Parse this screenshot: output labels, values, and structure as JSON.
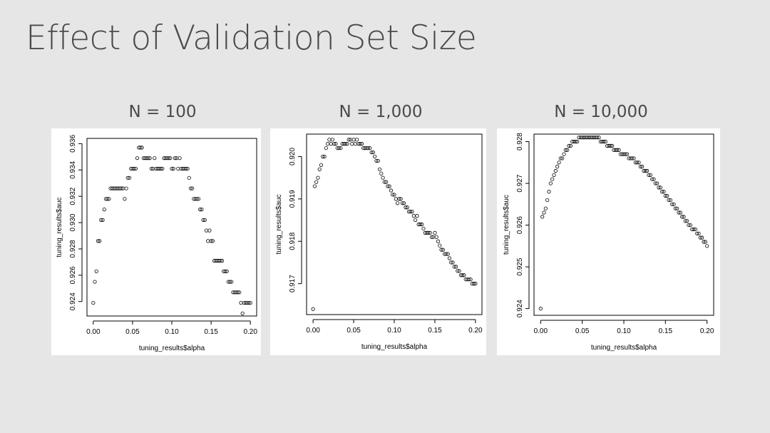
{
  "slide": {
    "title": "Effect of Validation Set Size"
  },
  "chart_data": [
    {
      "type": "scatter",
      "title": "N = 100",
      "xlabel": "tuning_results$alpha",
      "ylabel": "tuning_results$auc",
      "xlim": [
        -0.008,
        0.208
      ],
      "ylim": [
        0.9229,
        0.9364
      ],
      "xticks": [
        0,
        0.05,
        0.1,
        0.15,
        0.2
      ],
      "xtick_labels": [
        "0.00",
        "0.05",
        "0.10",
        "0.15",
        "0.20"
      ],
      "yticks": [
        0.924,
        0.926,
        0.928,
        0.93,
        0.932,
        0.934,
        0.936
      ],
      "ytick_labels": [
        "0.924",
        "0.926",
        "0.928",
        "0.930",
        "0.932",
        "0.934",
        "0.936"
      ],
      "x": [
        0.0,
        0.002,
        0.004,
        0.006,
        0.008,
        0.01,
        0.012,
        0.014,
        0.016,
        0.018,
        0.02,
        0.022,
        0.024,
        0.026,
        0.028,
        0.03,
        0.032,
        0.034,
        0.036,
        0.038,
        0.04,
        0.042,
        0.044,
        0.046,
        0.048,
        0.05,
        0.052,
        0.054,
        0.056,
        0.058,
        0.06,
        0.062,
        0.064,
        0.066,
        0.068,
        0.07,
        0.072,
        0.074,
        0.076,
        0.078,
        0.08,
        0.082,
        0.084,
        0.086,
        0.088,
        0.09,
        0.092,
        0.094,
        0.096,
        0.098,
        0.1,
        0.102,
        0.104,
        0.106,
        0.108,
        0.11,
        0.112,
        0.114,
        0.116,
        0.118,
        0.12,
        0.122,
        0.124,
        0.126,
        0.128,
        0.13,
        0.132,
        0.134,
        0.136,
        0.138,
        0.14,
        0.142,
        0.144,
        0.146,
        0.148,
        0.15,
        0.152,
        0.154,
        0.156,
        0.158,
        0.16,
        0.162,
        0.164,
        0.166,
        0.168,
        0.17,
        0.172,
        0.174,
        0.176,
        0.178,
        0.18,
        0.182,
        0.184,
        0.186,
        0.188,
        0.19,
        0.192,
        0.194,
        0.196,
        0.198,
        0.2
      ],
      "values": [
        0.9239,
        0.9255,
        0.9263,
        0.9286,
        0.9286,
        0.9302,
        0.9302,
        0.931,
        0.9318,
        0.9318,
        0.9318,
        0.9326,
        0.9326,
        0.9326,
        0.9326,
        0.9326,
        0.9326,
        0.9326,
        0.9326,
        0.9326,
        0.9318,
        0.9326,
        0.9334,
        0.9334,
        0.9341,
        0.9341,
        0.9341,
        0.9341,
        0.9349,
        0.9357,
        0.9357,
        0.9357,
        0.9349,
        0.9349,
        0.9349,
        0.9349,
        0.9349,
        0.9341,
        0.9341,
        0.9349,
        0.9341,
        0.9341,
        0.9341,
        0.9341,
        0.9341,
        0.9349,
        0.9349,
        0.9349,
        0.9349,
        0.9349,
        0.9341,
        0.9341,
        0.9349,
        0.9349,
        0.9341,
        0.9349,
        0.9341,
        0.9341,
        0.9341,
        0.9341,
        0.9341,
        0.9334,
        0.9326,
        0.9326,
        0.9318,
        0.9318,
        0.9318,
        0.9318,
        0.931,
        0.931,
        0.9302,
        0.9302,
        0.9294,
        0.9286,
        0.9294,
        0.9286,
        0.9286,
        0.9271,
        0.9271,
        0.9271,
        0.9271,
        0.9271,
        0.9271,
        0.9263,
        0.9263,
        0.9263,
        0.9255,
        0.9255,
        0.9255,
        0.9247,
        0.9247,
        0.9247,
        0.9247,
        0.9247,
        0.9239,
        0.9231,
        0.9239,
        0.9239,
        0.9239,
        0.9239,
        0.9239
      ]
    },
    {
      "type": "scatter",
      "title": "N = 1,000",
      "xlabel": "tuning_results$alpha",
      "ylabel": "tuning_results$auc",
      "xlim": [
        -0.008,
        0.208
      ],
      "ylim": [
        0.91627,
        0.92053
      ],
      "xticks": [
        0,
        0.05,
        0.1,
        0.15,
        0.2
      ],
      "xtick_labels": [
        "0.00",
        "0.05",
        "0.10",
        "0.15",
        "0.20"
      ],
      "yticks": [
        0.917,
        0.918,
        0.919,
        0.92
      ],
      "ytick_labels": [
        "0.917",
        "0.918",
        "0.919",
        "0.920"
      ],
      "x": [
        0.0,
        0.002,
        0.004,
        0.006,
        0.008,
        0.01,
        0.012,
        0.014,
        0.016,
        0.018,
        0.02,
        0.022,
        0.024,
        0.026,
        0.028,
        0.03,
        0.032,
        0.034,
        0.036,
        0.038,
        0.04,
        0.042,
        0.044,
        0.046,
        0.048,
        0.05,
        0.052,
        0.054,
        0.056,
        0.058,
        0.06,
        0.062,
        0.064,
        0.066,
        0.068,
        0.07,
        0.072,
        0.074,
        0.076,
        0.078,
        0.08,
        0.082,
        0.084,
        0.086,
        0.088,
        0.09,
        0.092,
        0.094,
        0.096,
        0.098,
        0.1,
        0.102,
        0.104,
        0.106,
        0.108,
        0.11,
        0.112,
        0.114,
        0.116,
        0.118,
        0.12,
        0.122,
        0.124,
        0.126,
        0.128,
        0.13,
        0.132,
        0.134,
        0.136,
        0.138,
        0.14,
        0.142,
        0.144,
        0.146,
        0.148,
        0.15,
        0.152,
        0.154,
        0.156,
        0.158,
        0.16,
        0.162,
        0.164,
        0.166,
        0.168,
        0.17,
        0.172,
        0.174,
        0.176,
        0.178,
        0.18,
        0.182,
        0.184,
        0.186,
        0.188,
        0.19,
        0.192,
        0.194,
        0.196,
        0.198,
        0.2
      ],
      "values": [
        0.9164,
        0.9193,
        0.9194,
        0.9195,
        0.9197,
        0.9198,
        0.92,
        0.92,
        0.9202,
        0.9203,
        0.9204,
        0.9203,
        0.9204,
        0.9203,
        0.9203,
        0.9202,
        0.9202,
        0.9202,
        0.9203,
        0.9203,
        0.9203,
        0.9203,
        0.9204,
        0.9204,
        0.9203,
        0.9204,
        0.9203,
        0.9204,
        0.9203,
        0.9203,
        0.9203,
        0.9202,
        0.9202,
        0.9202,
        0.9202,
        0.9202,
        0.9201,
        0.9201,
        0.92,
        0.9199,
        0.9199,
        0.9197,
        0.9196,
        0.9195,
        0.9194,
        0.9194,
        0.9193,
        0.9193,
        0.9192,
        0.9191,
        0.9191,
        0.919,
        0.9189,
        0.919,
        0.919,
        0.9189,
        0.9189,
        0.9188,
        0.9188,
        0.9187,
        0.9187,
        0.9187,
        0.9186,
        0.9185,
        0.9186,
        0.9184,
        0.9184,
        0.9184,
        0.9183,
        0.9182,
        0.9182,
        0.9182,
        0.9182,
        0.9181,
        0.9181,
        0.9182,
        0.9181,
        0.918,
        0.9179,
        0.9178,
        0.9178,
        0.9177,
        0.9177,
        0.9177,
        0.9176,
        0.9175,
        0.9175,
        0.9174,
        0.9174,
        0.9173,
        0.9173,
        0.9172,
        0.9172,
        0.9172,
        0.9171,
        0.9171,
        0.9171,
        0.9171,
        0.917,
        0.917,
        0.917
      ]
    },
    {
      "type": "scatter",
      "title": "N = 10,000",
      "xlabel": "tuning_results$alpha",
      "ylabel": "tuning_results$auc",
      "xlim": [
        -0.008,
        0.208
      ],
      "ylim": [
        0.92384,
        0.92818
      ],
      "xticks": [
        0,
        0.05,
        0.1,
        0.15,
        0.2
      ],
      "xtick_labels": [
        "0.00",
        "0.05",
        "0.10",
        "0.15",
        "0.20"
      ],
      "yticks": [
        0.924,
        0.925,
        0.926,
        0.927,
        0.928
      ],
      "ytick_labels": [
        "0.924",
        "0.925",
        "0.926",
        "0.927",
        "0.928"
      ],
      "x": [
        0.0,
        0.002,
        0.004,
        0.006,
        0.008,
        0.01,
        0.012,
        0.014,
        0.016,
        0.018,
        0.02,
        0.022,
        0.024,
        0.026,
        0.028,
        0.03,
        0.032,
        0.034,
        0.036,
        0.038,
        0.04,
        0.042,
        0.044,
        0.046,
        0.048,
        0.05,
        0.052,
        0.054,
        0.056,
        0.058,
        0.06,
        0.062,
        0.064,
        0.066,
        0.068,
        0.07,
        0.072,
        0.074,
        0.076,
        0.078,
        0.08,
        0.082,
        0.084,
        0.086,
        0.088,
        0.09,
        0.092,
        0.094,
        0.096,
        0.098,
        0.1,
        0.102,
        0.104,
        0.106,
        0.108,
        0.11,
        0.112,
        0.114,
        0.116,
        0.118,
        0.12,
        0.122,
        0.124,
        0.126,
        0.128,
        0.13,
        0.132,
        0.134,
        0.136,
        0.138,
        0.14,
        0.142,
        0.144,
        0.146,
        0.148,
        0.15,
        0.152,
        0.154,
        0.156,
        0.158,
        0.16,
        0.162,
        0.164,
        0.166,
        0.168,
        0.17,
        0.172,
        0.174,
        0.176,
        0.178,
        0.18,
        0.182,
        0.184,
        0.186,
        0.188,
        0.19,
        0.192,
        0.194,
        0.196,
        0.198,
        0.2
      ],
      "values": [
        0.924,
        0.9262,
        0.9263,
        0.9264,
        0.9266,
        0.9268,
        0.927,
        0.9271,
        0.9272,
        0.9273,
        0.9274,
        0.9275,
        0.9276,
        0.9276,
        0.9277,
        0.9278,
        0.9278,
        0.9279,
        0.9279,
        0.928,
        0.928,
        0.928,
        0.928,
        0.9281,
        0.9281,
        0.9281,
        0.9281,
        0.9281,
        0.9281,
        0.9281,
        0.9281,
        0.9281,
        0.9281,
        0.9281,
        0.9281,
        0.9281,
        0.928,
        0.928,
        0.928,
        0.928,
        0.9279,
        0.9279,
        0.9279,
        0.9279,
        0.9278,
        0.9278,
        0.9278,
        0.9278,
        0.9277,
        0.9277,
        0.9277,
        0.9277,
        0.9277,
        0.9276,
        0.9276,
        0.9276,
        0.9276,
        0.9275,
        0.9275,
        0.9275,
        0.9274,
        0.9274,
        0.9273,
        0.9273,
        0.9273,
        0.9272,
        0.9272,
        0.9271,
        0.9271,
        0.927,
        0.927,
        0.9269,
        0.9269,
        0.9268,
        0.9268,
        0.9267,
        0.9267,
        0.9266,
        0.9266,
        0.9265,
        0.9265,
        0.9264,
        0.9264,
        0.9263,
        0.9263,
        0.9262,
        0.9262,
        0.9261,
        0.9261,
        0.926,
        0.926,
        0.9259,
        0.9259,
        0.9259,
        0.9258,
        0.9258,
        0.9257,
        0.9257,
        0.9256,
        0.9256,
        0.9255
      ]
    }
  ]
}
